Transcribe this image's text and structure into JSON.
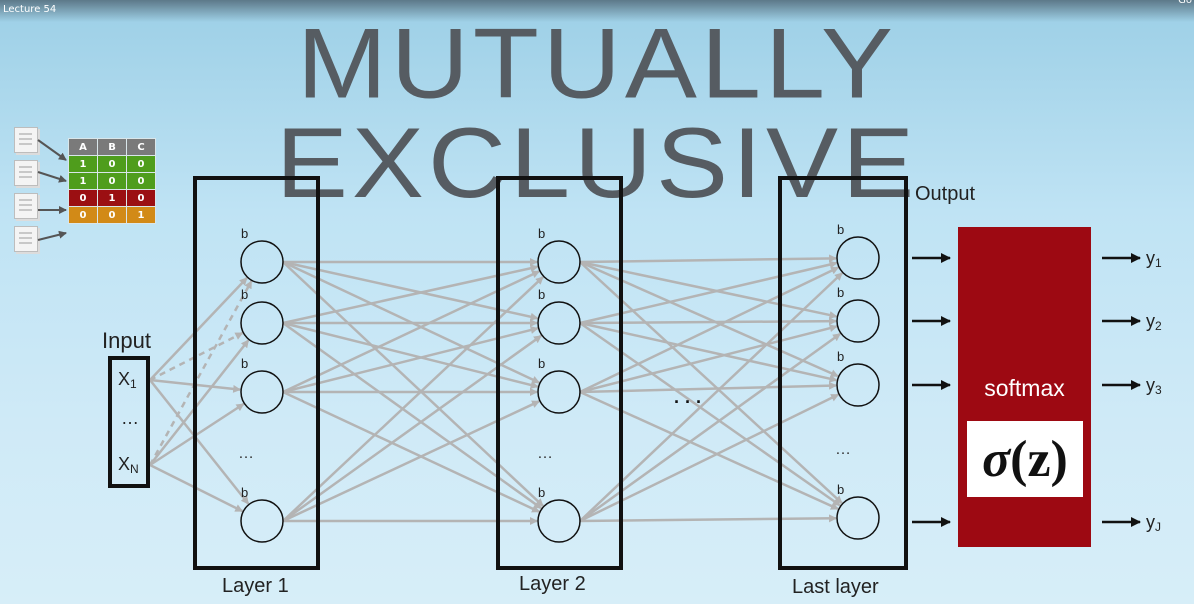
{
  "video": {
    "lecture_label": "Lecture 54",
    "corner_label": "Go"
  },
  "title": "MUTUALLY EXCLUSIVE",
  "class_table": {
    "headers": [
      "A",
      "B",
      "C"
    ],
    "rows": [
      {
        "values": [
          "1",
          "0",
          "0"
        ],
        "color": "#4f9d1c"
      },
      {
        "values": [
          "1",
          "0",
          "0"
        ],
        "color": "#4f9d1c"
      },
      {
        "values": [
          "0",
          "1",
          "0"
        ],
        "color": "#9b0f12"
      },
      {
        "values": [
          "0",
          "0",
          "1"
        ],
        "color": "#d28a17"
      }
    ]
  },
  "network": {
    "input_label": "Input",
    "inputs": {
      "x1": "X",
      "x1_sub": "1",
      "ellipsis": "…",
      "xn": "X",
      "xn_sub": "N"
    },
    "bias_label": "b",
    "hidden_ellipsis": "…",
    "between_layers_ellipsis": "· · ·",
    "layer1_label": "Layer 1",
    "layer2_label": "Layer 2",
    "last_layer_label": "Last layer",
    "output_label": "Output"
  },
  "softmax": {
    "label": "softmax",
    "formula_sigma": "σ",
    "formula_arg": "(z)",
    "color": "#9d0912"
  },
  "outputs": [
    {
      "y": "y",
      "sub": "1"
    },
    {
      "y": "y",
      "sub": "2"
    },
    {
      "y": "y",
      "sub": "3"
    },
    {
      "y": "y",
      "sub": "J"
    }
  ]
}
